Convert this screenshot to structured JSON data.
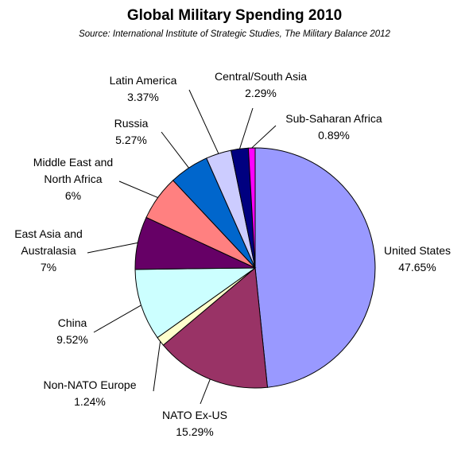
{
  "chart_data": {
    "type": "pie",
    "title": "Global Military Spending 2010",
    "subtitle": "Source: International Institute of Strategic Studies, The Military Balance 2012",
    "slices": [
      {
        "label": "United States",
        "pct_label": "47.65%",
        "value": 47.65,
        "color": "#9999ff"
      },
      {
        "label": "NATO Ex-US",
        "pct_label": "15.29%",
        "value": 15.29,
        "color": "#993366"
      },
      {
        "label": "Non-NATO Europe",
        "pct_label": "1.24%",
        "value": 1.24,
        "color": "#ffffcc"
      },
      {
        "label": "China",
        "pct_label": "9.52%",
        "value": 9.52,
        "color": "#ccffff"
      },
      {
        "label": "East Asia and Australasia",
        "pct_label": "7%",
        "value": 7,
        "color": "#660066"
      },
      {
        "label": "Middle East and North Africa",
        "pct_label": "6%",
        "value": 6,
        "color": "#ff8080"
      },
      {
        "label": "Russia",
        "pct_label": "5.27%",
        "value": 5.27,
        "color": "#0066cc"
      },
      {
        "label": "Latin America",
        "pct_label": "3.37%",
        "value": 3.37,
        "color": "#ccccff"
      },
      {
        "label": "Central/South Asia",
        "pct_label": "2.29%",
        "value": 2.29,
        "color": "#000080"
      },
      {
        "label": "Sub-Saharan Africa",
        "pct_label": "0.89%",
        "value": 0.89,
        "color": "#ff00ff"
      }
    ],
    "legend": "none (data labels)"
  }
}
